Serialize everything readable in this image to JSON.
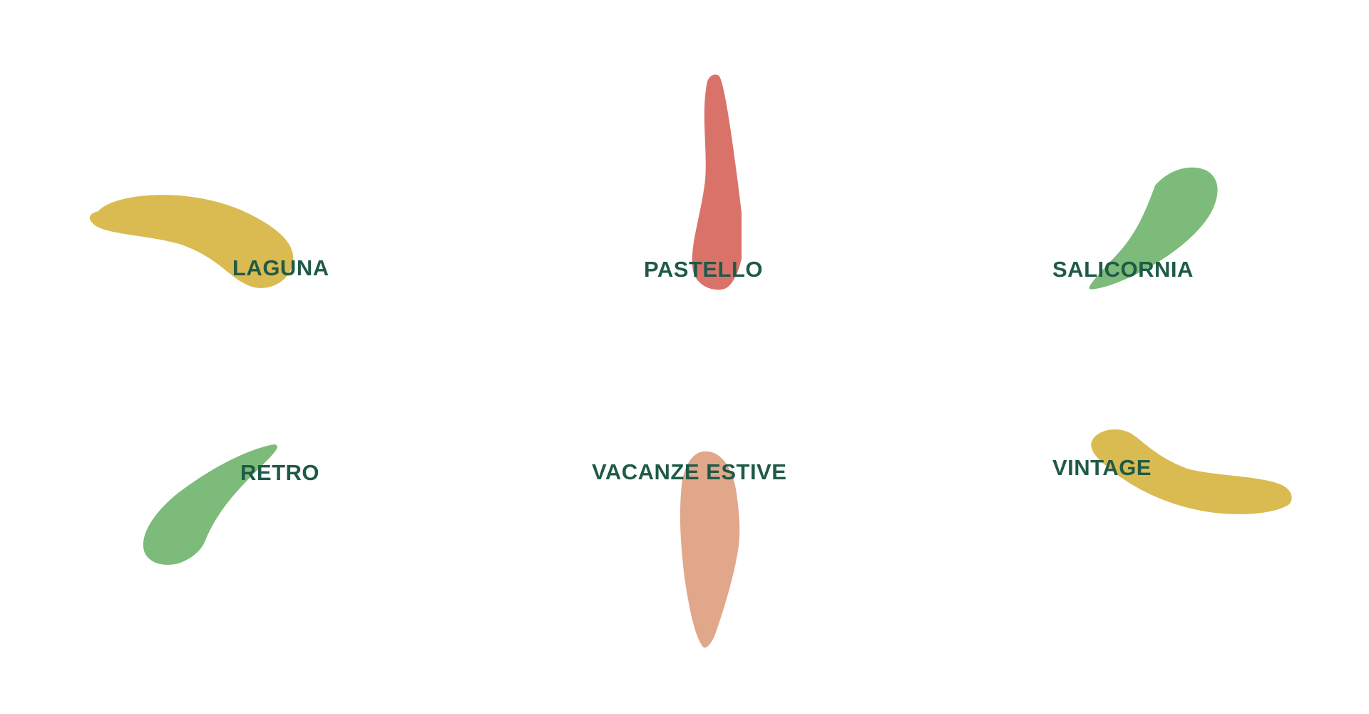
{
  "theme": {
    "label_color": "#1f5a48",
    "yellow": "#d9bb52",
    "red": "#d9736a",
    "green": "#7dbb7a",
    "salmon": "#e1a78a"
  },
  "collections": [
    {
      "label": "LAGUNA",
      "shape": "yellow-blob-icon"
    },
    {
      "label": "PASTELLO",
      "shape": "red-drop-icon"
    },
    {
      "label": "SALICORNIA",
      "shape": "green-leaf-icon"
    },
    {
      "label": "RETRO",
      "shape": "green-leaf-icon"
    },
    {
      "label": "VACANZE ESTIVE",
      "shape": "salmon-drop-icon"
    },
    {
      "label": "VINTAGE",
      "shape": "yellow-blob-icon"
    }
  ]
}
